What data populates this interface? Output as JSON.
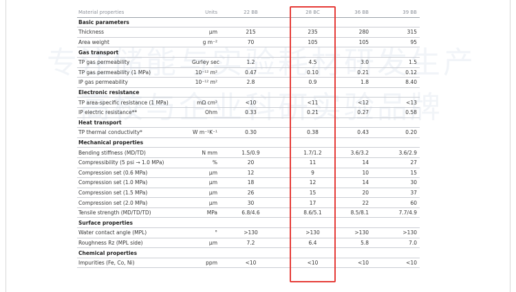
{
  "watermark": [
    "专注储能与实验耗材研发生产",
    "高校与企业科研实验品牌"
  ],
  "table": {
    "header": [
      "Material properties",
      "Units",
      "22 BB",
      "28 BC",
      "36 BB",
      "39 BB"
    ],
    "rows": [
      {
        "section": "Basic parameters"
      },
      [
        "Thickness",
        "µm",
        "215",
        "235",
        "280",
        "315"
      ],
      [
        "Area weight",
        "g m⁻²",
        "70",
        "105",
        "105",
        "95"
      ],
      {
        "section": "Gas transport"
      },
      [
        "TP gas permeability",
        "Gurley sec",
        "1.2",
        "4.5",
        "3.0",
        "1.5"
      ],
      [
        "TP gas permeability (1 MPa)",
        "10⁻¹² m²",
        "0.47",
        "0.10",
        "0.21",
        "0.12"
      ],
      [
        "IP gas permeability",
        "10⁻¹² m²",
        "2.8",
        "0.9",
        "1.8",
        "8.40"
      ],
      {
        "section": "Electronic resistance"
      },
      [
        "TP area-specific resistance (1 MPa)",
        "mΩ cm²",
        "<10",
        "<11",
        "<12",
        "<13"
      ],
      [
        "IP electric resistance**",
        "Ohm",
        "0.33",
        "0.21",
        "0.27",
        "0.58"
      ],
      {
        "section": "Heat transport"
      },
      [
        "TP thermal conductivity*",
        "W m⁻¹K⁻¹",
        "0.30",
        "0.38",
        "0.43",
        "0.20"
      ],
      {
        "section": "Mechanical properties"
      },
      [
        "Bending stiffness (MD/TD)",
        "N mm",
        "1.5/0.9",
        "1.7/1.2",
        "3.6/3.2",
        "3.6/2.9"
      ],
      [
        "Compressibility (5 psi → 1.0 MPa)",
        "%",
        "20",
        "11",
        "14",
        "27"
      ],
      [
        "Compression set (0.6 MPa)",
        "µm",
        "12",
        "9",
        "10",
        "15"
      ],
      [
        "Compression set (1.0 MPa)",
        "µm",
        "18",
        "12",
        "14",
        "30"
      ],
      [
        "Compression set (1.5 MPa)",
        "µm",
        "26",
        "15",
        "20",
        "37"
      ],
      [
        "Compression set (2.0 MPa)",
        "µm",
        "30",
        "17",
        "22",
        "60"
      ],
      [
        "Tensile strength (MD/TD/TD)",
        "MPa",
        "6.8/4.6",
        "8.6/5.1",
        "8.5/8.1",
        "7.7/4.9"
      ],
      {
        "section": "Surface properties"
      },
      [
        "Water contact angle (MPL)",
        "°",
        ">130",
        ">130",
        ">130",
        ">130"
      ],
      [
        "Roughness Rz (MPL side)",
        "µm",
        "7.2",
        "6.4",
        "5.8",
        "7.0"
      ],
      {
        "section": "Chemical properties"
      },
      [
        "Impurities (Fe, Co, Ni)",
        "ppm",
        "<10",
        "<10",
        "<10",
        "<10"
      ]
    ]
  }
}
